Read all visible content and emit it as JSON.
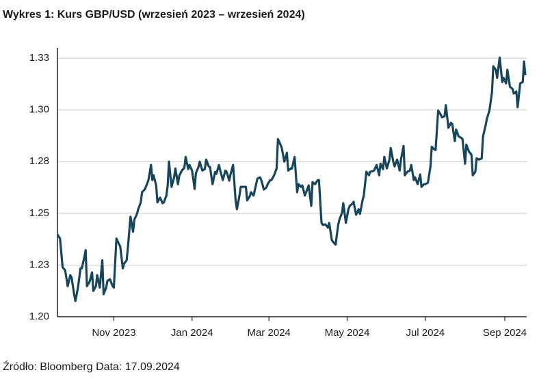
{
  "chart_data": {
    "type": "line",
    "title": "Wykres 1: Kurs GBP/USD (wrzesień 2023 – wrzesień 2024)",
    "source": "Źródło: Bloomberg Data: 17.09.2024",
    "color": "#17455a",
    "grid": true,
    "xlim": [
      0,
      365
    ],
    "xticks": [
      {
        "value": 44,
        "label": "Nov 2023"
      },
      {
        "value": 105,
        "label": "Jan 2024"
      },
      {
        "value": 165,
        "label": "Mar 2024"
      },
      {
        "value": 226,
        "label": "May 2024"
      },
      {
        "value": 287,
        "label": "Jul 2024"
      },
      {
        "value": 349,
        "label": "Sep 2024"
      }
    ],
    "ylim": [
      1.2,
      1.33
    ],
    "yticks": [
      {
        "value": 1.2,
        "label": "1.20"
      },
      {
        "value": 1.225,
        "label": "1.23"
      },
      1.25,
      {
        "value": 1.275,
        "label": "1.28"
      },
      {
        "value": 1.3,
        "label": "1.30"
      },
      {
        "value": 1.325,
        "label": "1.33"
      }
    ],
    "x": [
      0,
      2,
      4,
      6,
      8,
      10,
      11,
      13,
      14,
      16,
      18,
      19,
      21,
      22,
      23,
      25,
      27,
      28,
      30,
      31,
      33,
      35,
      36,
      38,
      39,
      41,
      43,
      44,
      46,
      47,
      49,
      51,
      52,
      54,
      55,
      57,
      59,
      60,
      62,
      63,
      65,
      66,
      68,
      69,
      71,
      73,
      74,
      75,
      77,
      78,
      80,
      82,
      83,
      85,
      86,
      87,
      89,
      91,
      92,
      94,
      95,
      97,
      99,
      100,
      102,
      103,
      105,
      107,
      108,
      110,
      111,
      113,
      115,
      116,
      118,
      119,
      121,
      123,
      124,
      126,
      127,
      129,
      131,
      132,
      134,
      135,
      137,
      139,
      140,
      142,
      143,
      145,
      147,
      148,
      150,
      151,
      153,
      155,
      156,
      158,
      159,
      161,
      163,
      164,
      166,
      167,
      169,
      171,
      172,
      174,
      175,
      177,
      179,
      180,
      182,
      183,
      185,
      187,
      188,
      190,
      191,
      193,
      195,
      196,
      198,
      199,
      201,
      203,
      204,
      206,
      207,
      209,
      211,
      212,
      214,
      215,
      217,
      219,
      220,
      222,
      223,
      225,
      227,
      228,
      230,
      231,
      233,
      235,
      236,
      238,
      239,
      241,
      243,
      244,
      246,
      247,
      249,
      251,
      252,
      254,
      255,
      257,
      259,
      260,
      262,
      263,
      265,
      267,
      268,
      270,
      271,
      273,
      275,
      276,
      278,
      279,
      281,
      283,
      284,
      286,
      287,
      289,
      291,
      292,
      294,
      295,
      297,
      299,
      300,
      302,
      303,
      305,
      307,
      308,
      310,
      311,
      313,
      315,
      316,
      318,
      319,
      321,
      323,
      324,
      326,
      327,
      329,
      331,
      332,
      334,
      335,
      337,
      339,
      340,
      342,
      343,
      345,
      347,
      348,
      350,
      351,
      353,
      355,
      356,
      358,
      359,
      361,
      363,
      364,
      365
    ],
    "values": [
      1.2398,
      1.2378,
      1.224,
      1.2224,
      1.2148,
      1.2201,
      1.2191,
      1.2109,
      1.2076,
      1.2141,
      1.2234,
      1.2234,
      1.2289,
      1.2322,
      1.2148,
      1.2168,
      1.2214,
      1.2125,
      1.2148,
      1.2201,
      1.2141,
      1.2273,
      1.2109,
      1.2141,
      1.2174,
      1.2181,
      1.2148,
      1.2141,
      1.2378,
      1.2365,
      1.2339,
      1.2234,
      1.2257,
      1.2273,
      1.2339,
      1.2484,
      1.2411,
      1.247,
      1.2497,
      1.252,
      1.2553,
      1.2602,
      1.2615,
      1.2628,
      1.2661,
      1.2734,
      1.2661,
      1.2684,
      1.2635,
      1.2553,
      1.2576,
      1.2549,
      1.2553,
      1.2586,
      1.2635,
      1.275,
      1.2628,
      1.2674,
      1.2717,
      1.2641,
      1.2681,
      1.2707,
      1.272,
      1.2773,
      1.2714,
      1.2734,
      1.2707,
      1.2618,
      1.2694,
      1.2724,
      1.275,
      1.2707,
      1.2714,
      1.276,
      1.2727,
      1.2724,
      1.2641,
      1.2701,
      1.2691,
      1.2734,
      1.2707,
      1.2661,
      1.2707,
      1.2701,
      1.2658,
      1.2688,
      1.2734,
      1.2563,
      1.252,
      1.2586,
      1.2628,
      1.2628,
      1.2628,
      1.2563,
      1.2582,
      1.2602,
      1.2586,
      1.2641,
      1.2668,
      1.2674,
      1.2661,
      1.2615,
      1.2625,
      1.2641,
      1.2661,
      1.2661,
      1.2684,
      1.2717,
      1.2859,
      1.2832,
      1.2816,
      1.275,
      1.2793,
      1.2707,
      1.2717,
      1.2717,
      1.2773,
      1.2602,
      1.2641,
      1.2628,
      1.2635,
      1.2586,
      1.2618,
      1.2635,
      1.2536,
      1.2651,
      1.2641,
      1.2661,
      1.2661,
      1.2454,
      1.2444,
      1.2447,
      1.2431,
      1.2454,
      1.2372,
      1.2362,
      1.2349,
      1.2444,
      1.247,
      1.2503,
      1.2549,
      1.2454,
      1.252,
      1.2536,
      1.2546,
      1.2556,
      1.2493,
      1.252,
      1.2497,
      1.2563,
      1.2586,
      1.2701,
      1.2684,
      1.2701,
      1.2704,
      1.2707,
      1.2734,
      1.2684,
      1.274,
      1.2714,
      1.2773,
      1.2717,
      1.276,
      1.2816,
      1.275,
      1.2727,
      1.276,
      1.2707,
      1.276,
      1.2826,
      1.2684,
      1.2701,
      1.2707,
      1.2734,
      1.2661,
      1.2674,
      1.2641,
      1.2688,
      1.2628,
      1.2641,
      1.2641,
      1.2648,
      1.2727,
      1.2822,
      1.2809,
      1.2806,
      1.2997,
      1.2977,
      1.2964,
      1.297,
      1.3023,
      1.2914,
      1.2938,
      1.2931,
      1.2849,
      1.2905,
      1.2872,
      1.2865,
      1.2859,
      1.274,
      1.2832,
      1.2799,
      1.2783,
      1.2684,
      1.2701,
      1.2766,
      1.276,
      1.2766,
      1.2872,
      1.2924,
      1.2957,
      1.2997,
      1.3086,
      1.3211,
      1.3194,
      1.3155,
      1.3253,
      1.3135,
      1.3155,
      1.3128,
      1.3194,
      1.3112,
      1.3102,
      1.3079,
      1.3089,
      1.3013,
      1.3128,
      1.3135,
      1.3234,
      1.3168
    ]
  }
}
